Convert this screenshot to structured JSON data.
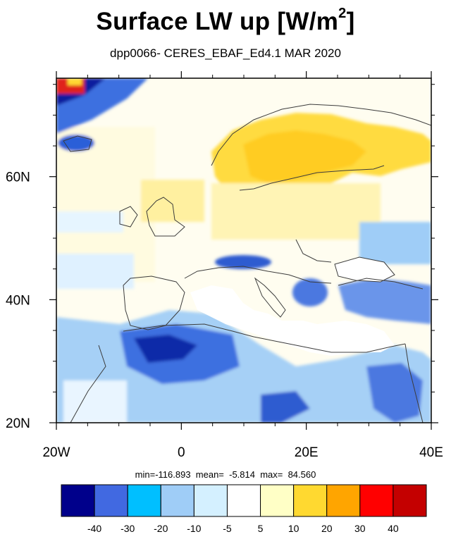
{
  "title_main": "Surface LW up [W/m",
  "title_sup": "2",
  "title_close": "]",
  "subtitle": "dpp0066- CERES_EBAF_Ed4.1 MAR 2020",
  "stats": "min=-116.893  mean=  -5.814  max=  84.560",
  "chart_data": {
    "type": "heatmap",
    "title": "Surface LW up [W/m2]",
    "subtitle": "dpp0066- CERES_EBAF_Ed4.1 MAR 2020",
    "x_axis": {
      "range": [
        -20,
        40
      ],
      "ticks": [
        -20,
        0,
        20,
        40
      ],
      "tick_labels": [
        "20W",
        "0",
        "20E",
        "40E"
      ]
    },
    "y_axis": {
      "range": [
        20,
        76
      ],
      "ticks": [
        20,
        40,
        60
      ],
      "tick_labels": [
        "20N",
        "40N",
        "60N"
      ]
    },
    "statistics": {
      "min": -116.893,
      "mean": -5.814,
      "max": 84.56
    },
    "colorbar": {
      "levels": [
        -40,
        -30,
        -20,
        -10,
        -5,
        5,
        10,
        20,
        30,
        40
      ],
      "tick_labels": [
        "-40",
        "-30",
        "-20",
        "-10",
        "-5",
        "5",
        "10",
        "20",
        "30",
        "40"
      ],
      "colors": [
        "#00008b",
        "#4169e1",
        "#00bfff",
        "#9fcdf7",
        "#d4f0ff",
        "#ffffff",
        "#ffffc6",
        "#ffd930",
        "#ffa500",
        "#ff0000",
        "#c40000"
      ]
    }
  }
}
